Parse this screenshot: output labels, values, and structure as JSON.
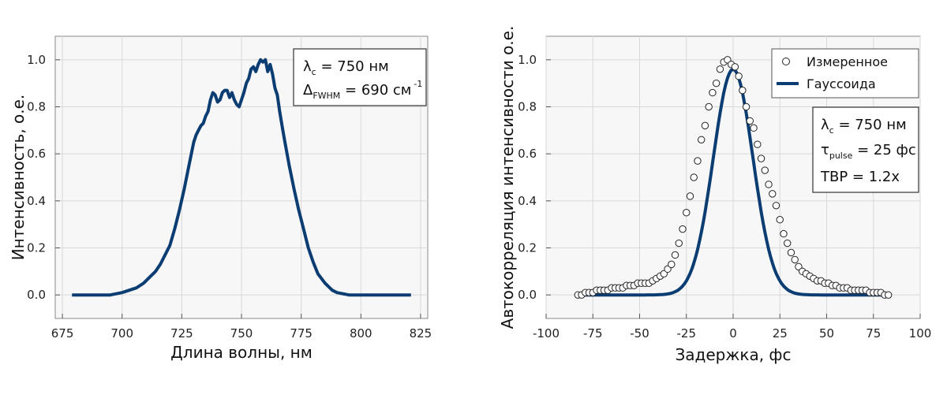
{
  "colors": {
    "line": "#0b3d73",
    "frame": "#8a8a8a",
    "plotbg": "#f7f7f7",
    "grid": "#d8d8d8"
  },
  "chart_data": [
    {
      "type": "line",
      "xlabel": "Длина волны, нм",
      "ylabel": "Интенсивность, о.е.",
      "xlim": [
        672,
        828
      ],
      "ylim": [
        -0.1,
        1.1
      ],
      "xticks": [
        "675",
        "700",
        "725",
        "750",
        "775",
        "800",
        "825"
      ],
      "yticks": [
        "0.0",
        "0.2",
        "0.4",
        "0.6",
        "0.8",
        "1.0"
      ],
      "grid": true,
      "annotation": {
        "lambda": {
          "sym": "λ",
          "sub": "c",
          "text": " = 750 нм"
        },
        "fwhm": {
          "sym": "Δ",
          "sub": "FWHM",
          "text": " = 690 см",
          "sup": "-1"
        }
      },
      "series": [
        {
          "x": [
            679,
            685,
            690,
            695,
            700,
            703,
            706,
            709,
            712,
            714,
            716,
            718,
            720,
            722,
            724,
            726,
            728,
            730,
            731,
            732,
            733,
            734,
            735,
            736,
            737,
            738,
            739,
            740,
            741,
            742,
            743,
            744,
            745,
            746,
            747,
            748,
            749,
            750,
            751,
            752,
            753,
            754,
            755,
            756,
            757,
            758,
            759,
            760,
            761,
            762,
            763,
            764,
            765,
            766,
            767,
            768,
            770,
            772,
            774,
            776,
            778,
            780,
            782,
            785,
            788,
            790,
            795,
            800,
            805,
            810,
            815,
            821
          ],
          "y": [
            0.0,
            0.0,
            0.0,
            0.0,
            0.01,
            0.02,
            0.03,
            0.05,
            0.08,
            0.1,
            0.13,
            0.17,
            0.21,
            0.28,
            0.36,
            0.45,
            0.55,
            0.65,
            0.68,
            0.7,
            0.72,
            0.73,
            0.76,
            0.78,
            0.83,
            0.86,
            0.85,
            0.82,
            0.83,
            0.86,
            0.87,
            0.87,
            0.84,
            0.86,
            0.83,
            0.81,
            0.8,
            0.83,
            0.86,
            0.9,
            0.92,
            0.96,
            0.97,
            0.95,
            0.98,
            1.0,
            0.99,
            1.0,
            0.95,
            0.98,
            0.94,
            0.88,
            0.85,
            0.78,
            0.72,
            0.66,
            0.55,
            0.45,
            0.36,
            0.28,
            0.2,
            0.14,
            0.09,
            0.05,
            0.02,
            0.01,
            0.0,
            0.0,
            0.0,
            0.0,
            0.0,
            0.0
          ]
        }
      ]
    },
    {
      "type": "scatter",
      "xlabel": "Задержка, фс",
      "ylabel": "Автокорреляция интенсивности о.е.",
      "xlim": [
        -100,
        100
      ],
      "ylim": [
        -0.1,
        1.1
      ],
      "xticks": [
        "-100",
        "-75",
        "-50",
        "-25",
        "0",
        "25",
        "50",
        "75",
        "100"
      ],
      "yticks": [
        "0.0",
        "0.2",
        "0.4",
        "0.6",
        "0.8",
        "1.0"
      ],
      "grid": true,
      "legend": "top-right",
      "legend_labels": [
        "Измеренное",
        "Гауссоида"
      ],
      "annotation": {
        "lambda": {
          "sym": "λ",
          "sub": "c",
          "text": " = 750 нм"
        },
        "tau": {
          "sym": "τ",
          "sub": "pulse",
          "text": " = 25 фс"
        },
        "tbp": "TBP = 1.2x"
      },
      "series": [
        {
          "kind": "markers",
          "x": [
            -83,
            -81,
            -79,
            -77,
            -75,
            -73,
            -71,
            -69,
            -67,
            -65,
            -63,
            -61,
            -59,
            -57,
            -55,
            -53,
            -51,
            -49,
            -47,
            -45,
            -43,
            -41,
            -39,
            -37,
            -35,
            -33,
            -31,
            -29,
            -27,
            -25,
            -23,
            -21,
            -19,
            -17,
            -15,
            -13,
            -11,
            -9,
            -7,
            -5,
            -3,
            -1,
            1,
            3,
            5,
            7,
            9,
            11,
            13,
            15,
            17,
            19,
            21,
            23,
            25,
            27,
            29,
            31,
            33,
            35,
            37,
            39,
            41,
            43,
            45,
            47,
            49,
            51,
            53,
            55,
            57,
            59,
            61,
            63,
            65,
            67,
            69,
            71,
            73,
            75,
            77,
            79,
            81,
            83
          ],
          "y": [
            0.0,
            0.0,
            0.01,
            0.01,
            0.01,
            0.02,
            0.02,
            0.02,
            0.02,
            0.03,
            0.03,
            0.03,
            0.03,
            0.04,
            0.04,
            0.04,
            0.05,
            0.05,
            0.05,
            0.05,
            0.06,
            0.07,
            0.08,
            0.09,
            0.11,
            0.13,
            0.17,
            0.22,
            0.28,
            0.35,
            0.42,
            0.5,
            0.57,
            0.66,
            0.72,
            0.8,
            0.86,
            0.9,
            0.96,
            0.99,
            1.0,
            0.98,
            0.97,
            0.93,
            0.87,
            0.8,
            0.74,
            0.71,
            0.64,
            0.58,
            0.53,
            0.47,
            0.43,
            0.38,
            0.32,
            0.26,
            0.22,
            0.18,
            0.15,
            0.12,
            0.1,
            0.09,
            0.08,
            0.07,
            0.06,
            0.06,
            0.05,
            0.05,
            0.04,
            0.04,
            0.03,
            0.03,
            0.03,
            0.02,
            0.02,
            0.02,
            0.02,
            0.02,
            0.01,
            0.01,
            0.01,
            0.01,
            0.0,
            0.0
          ]
        },
        {
          "kind": "line",
          "gaussian": {
            "amplitude": 0.96,
            "center": 0,
            "fwhm": 25
          }
        }
      ]
    }
  ]
}
